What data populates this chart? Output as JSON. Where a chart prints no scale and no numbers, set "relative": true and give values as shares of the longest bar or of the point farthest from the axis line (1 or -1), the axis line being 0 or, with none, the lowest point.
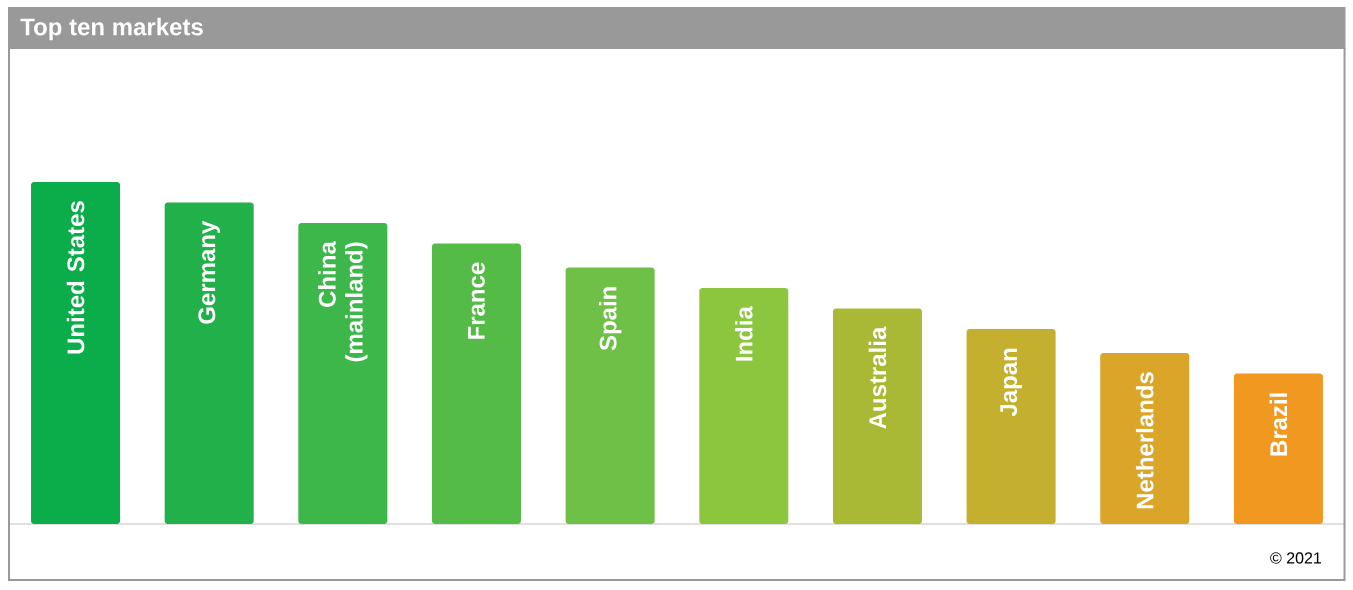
{
  "chart_data": {
    "type": "bar",
    "title": "Top ten markets",
    "categories": [
      "United States",
      "Germany",
      "China (mainland)",
      "France",
      "Spain",
      "India",
      "Australia",
      "Japan",
      "Netherlands",
      "Brazil"
    ],
    "values": [
      1,
      0.94,
      0.88,
      0.82,
      0.75,
      0.69,
      0.63,
      0.57,
      0.5,
      0.44
    ],
    "colors": [
      "#0aad4a",
      "#22b04a",
      "#3db74a",
      "#55bb47",
      "#6fc046",
      "#8cc63f",
      "#a9b935",
      "#c4b02e",
      "#dba52a",
      "#f0981f"
    ],
    "relative": true,
    "annotations": [
      "© 2021"
    ]
  }
}
